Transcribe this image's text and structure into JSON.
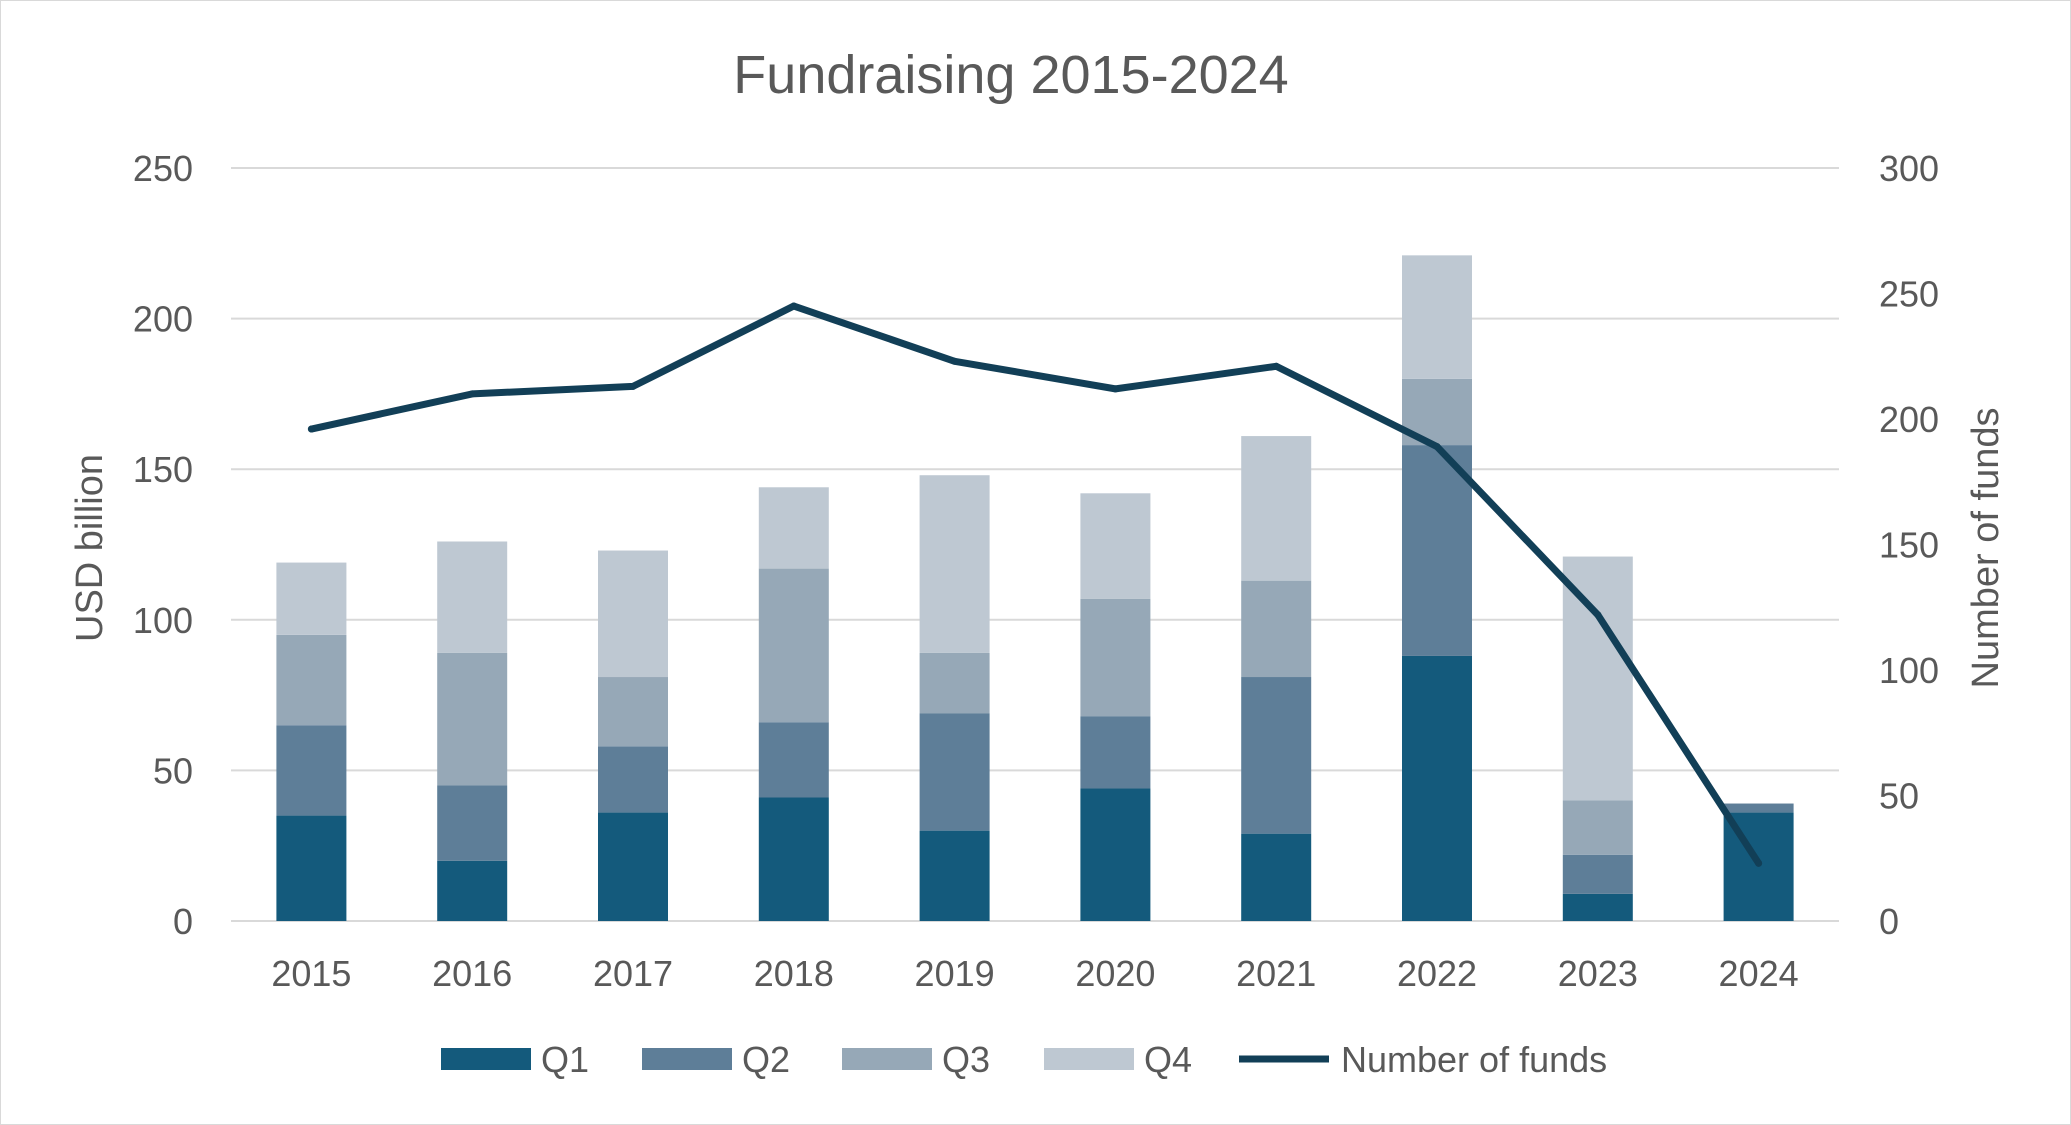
{
  "chart_data": {
    "type": "bar",
    "stacked": true,
    "title": "Fundraising 2015-2024",
    "ylabel": "USD billion",
    "y2label": "Number of funds",
    "ylim": [
      0,
      250
    ],
    "y2lim": [
      0,
      300
    ],
    "yticks": [
      0,
      50,
      100,
      150,
      200,
      250
    ],
    "y2ticks": [
      0,
      50,
      100,
      150,
      200,
      250,
      300
    ],
    "grid": true,
    "legend_position": "bottom",
    "categories": [
      "2015",
      "2016",
      "2017",
      "2018",
      "2019",
      "2020",
      "2021",
      "2022",
      "2023",
      "2024"
    ],
    "series": [
      {
        "name": "Q1",
        "color": "#145a7c",
        "values": [
          35,
          20,
          36,
          41,
          30,
          44,
          29,
          88,
          9,
          36
        ]
      },
      {
        "name": "Q2",
        "color": "#5e7e98",
        "values": [
          30,
          25,
          22,
          25,
          39,
          24,
          52,
          70,
          13,
          3
        ]
      },
      {
        "name": "Q3",
        "color": "#96a8b7",
        "values": [
          30,
          44,
          23,
          51,
          20,
          39,
          32,
          22,
          18,
          0
        ]
      },
      {
        "name": "Q4",
        "color": "#bec8d2",
        "values": [
          24,
          37,
          42,
          27,
          59,
          35,
          48,
          41,
          81,
          0
        ]
      }
    ],
    "line_series": {
      "name": "Number of funds",
      "axis": "right",
      "color": "#123f57",
      "values": [
        196,
        210,
        213,
        245,
        223,
        212,
        221,
        189,
        122,
        23
      ]
    }
  }
}
